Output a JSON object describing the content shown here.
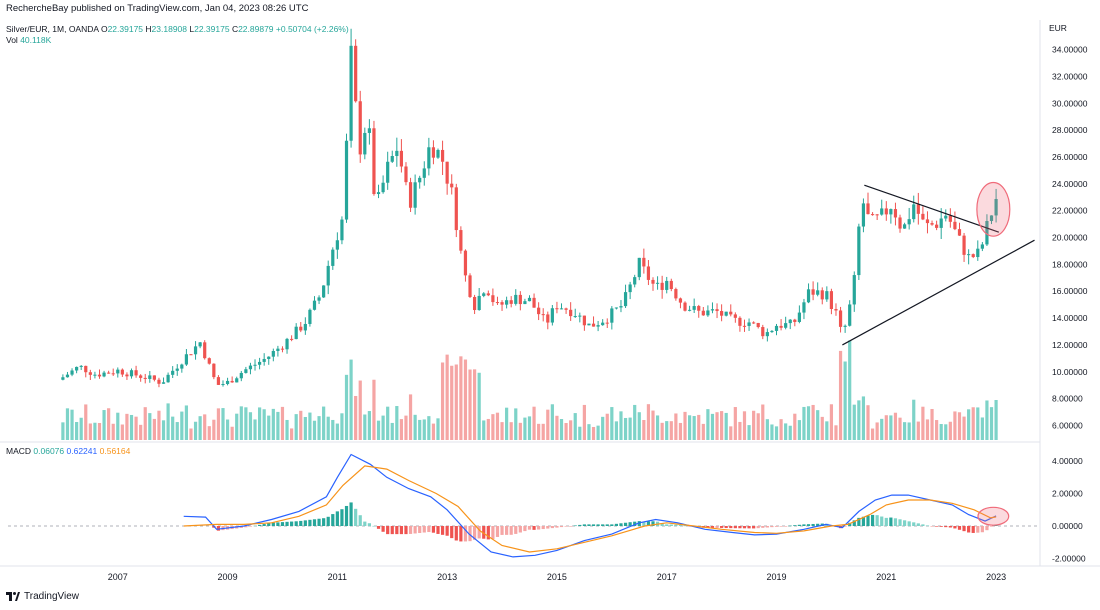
{
  "header": {
    "published": "RechercheBay published on TradingView.com, Jan 04, 2023 08:26 UTC",
    "symbol_line": {
      "symbol": "Silver/EUR, 1M, OANDA",
      "open_label": "O",
      "open": "22.39175",
      "high_label": "H",
      "high": "23.18908",
      "low_label": "L",
      "low": "22.39175",
      "close_label": "C",
      "close": "22.89879",
      "change": "+0.50704 (+2.26%)"
    },
    "volume_line": {
      "label": "Vol",
      "value": "40.118K"
    }
  },
  "macd_header": {
    "label": "MACD",
    "hist": "0.06076",
    "macd": "0.62241",
    "signal": "0.56164"
  },
  "footer": {
    "brand": "TradingView"
  },
  "colors": {
    "up": "#26a69a",
    "down": "#ef5350",
    "up_vol": "#7dd3c8",
    "down_vol": "#f5a5a4",
    "macd": "#2962ff",
    "signal": "#f7931a",
    "ellipse": "#f06b7a"
  },
  "chart_data": [
    {
      "type": "candlestick",
      "title": "Silver/EUR, 1M, OANDA",
      "currency": "EUR",
      "ylim": [
        4.4,
        36.2
      ],
      "y_ticks": [
        6,
        8,
        10,
        12,
        14,
        16,
        18,
        20,
        22,
        24,
        26,
        28,
        30,
        32,
        34
      ],
      "y_tick_labels": [
        "6.00000",
        "8.00000",
        "10.00000",
        "12.00000",
        "14.00000",
        "16.00000",
        "18.00000",
        "20.00000",
        "22.00000",
        "24.00000",
        "26.00000",
        "28.00000",
        "30.00000",
        "32.00000",
        "34.00000"
      ],
      "x_ticks": [
        2007,
        2009,
        2011,
        2013,
        2015,
        2017,
        2019,
        2021,
        2023
      ],
      "x_tick_labels": [
        "2007",
        "2009",
        "2011",
        "2013",
        "2015",
        "2017",
        "2019",
        "2021",
        "2023"
      ],
      "xlim": [
        2005.0,
        2023.8
      ],
      "monthly_close_anchors": [
        [
          2006.0,
          9.6
        ],
        [
          2006.3,
          10.4
        ],
        [
          2006.6,
          9.8
        ],
        [
          2007.0,
          10.1
        ],
        [
          2007.5,
          9.6
        ],
        [
          2007.8,
          9.2
        ],
        [
          2008.2,
          11.0
        ],
        [
          2008.5,
          12.2
        ],
        [
          2008.8,
          9.0
        ],
        [
          2009.0,
          9.2
        ],
        [
          2009.3,
          10.1
        ],
        [
          2009.7,
          11.0
        ],
        [
          2010.0,
          12.0
        ],
        [
          2010.4,
          13.6
        ],
        [
          2010.7,
          15.8
        ],
        [
          2010.9,
          19.0
        ],
        [
          2011.1,
          21.5
        ],
        [
          2011.25,
          33.5
        ],
        [
          2011.4,
          26.5
        ],
        [
          2011.55,
          29.0
        ],
        [
          2011.7,
          22.0
        ],
        [
          2011.9,
          25.0
        ],
        [
          2012.1,
          26.8
        ],
        [
          2012.3,
          22.5
        ],
        [
          2012.5,
          24.5
        ],
        [
          2012.7,
          27.0
        ],
        [
          2012.9,
          26.0
        ],
        [
          2013.1,
          23.0
        ],
        [
          2013.3,
          17.5
        ],
        [
          2013.5,
          15.0
        ],
        [
          2013.7,
          16.5
        ],
        [
          2013.9,
          14.8
        ],
        [
          2014.2,
          15.5
        ],
        [
          2014.5,
          15.3
        ],
        [
          2014.8,
          13.6
        ],
        [
          2015.0,
          15.0
        ],
        [
          2015.3,
          14.5
        ],
        [
          2015.6,
          13.4
        ],
        [
          2015.9,
          14.0
        ],
        [
          2016.2,
          15.0
        ],
        [
          2016.5,
          18.0
        ],
        [
          2016.8,
          16.2
        ],
        [
          2017.0,
          16.8
        ],
        [
          2017.3,
          15.0
        ],
        [
          2017.6,
          14.4
        ],
        [
          2017.9,
          14.5
        ],
        [
          2018.2,
          13.8
        ],
        [
          2018.5,
          13.7
        ],
        [
          2018.8,
          12.8
        ],
        [
          2019.0,
          13.5
        ],
        [
          2019.3,
          13.5
        ],
        [
          2019.6,
          16.0
        ],
        [
          2019.9,
          15.8
        ],
        [
          2020.1,
          14.2
        ],
        [
          2020.2,
          12.5
        ],
        [
          2020.4,
          16.0
        ],
        [
          2020.55,
          23.0
        ],
        [
          2020.7,
          21.0
        ],
        [
          2020.9,
          21.5
        ],
        [
          2021.1,
          22.5
        ],
        [
          2021.3,
          20.5
        ],
        [
          2021.5,
          22.5
        ],
        [
          2021.7,
          20.8
        ],
        [
          2021.9,
          21.0
        ],
        [
          2022.1,
          21.8
        ],
        [
          2022.3,
          20.0
        ],
        [
          2022.5,
          18.5
        ],
        [
          2022.7,
          18.8
        ],
        [
          2022.85,
          21.0
        ],
        [
          2023.0,
          22.9
        ]
      ],
      "volume_ylim": [
        0,
        40
      ],
      "annotations": [
        {
          "type": "trendline",
          "name": "upper-descending-trendline",
          "from": [
            2020.6,
            23.9
          ],
          "to": [
            2023.05,
            20.4
          ]
        },
        {
          "type": "trendline",
          "name": "lower-ascending-trendline",
          "from": [
            2020.2,
            12.0
          ],
          "to": [
            2023.7,
            19.8
          ]
        },
        {
          "type": "ellipse",
          "name": "breakout-circle",
          "center": [
            2022.95,
            22.1
          ],
          "rx_years": 0.3,
          "ry_price": 2.0
        }
      ]
    },
    {
      "type": "line",
      "title": "MACD",
      "ylim": [
        -2.4,
        4.8
      ],
      "y_ticks": [
        -2,
        0,
        2,
        4
      ],
      "y_tick_labels": [
        "-2.00000",
        "0.00000",
        "2.00000",
        "4.00000"
      ],
      "series": [
        {
          "name": "MACD",
          "color": "#2962ff",
          "points": [
            [
              2008.2,
              0.6
            ],
            [
              2008.6,
              0.55
            ],
            [
              2008.8,
              -0.2
            ],
            [
              2009.3,
              0.0
            ],
            [
              2009.8,
              0.4
            ],
            [
              2010.3,
              0.9
            ],
            [
              2010.8,
              1.8
            ],
            [
              2011.0,
              3.0
            ],
            [
              2011.25,
              4.4
            ],
            [
              2011.6,
              3.8
            ],
            [
              2011.9,
              3.0
            ],
            [
              2012.3,
              2.3
            ],
            [
              2012.7,
              1.8
            ],
            [
              2013.0,
              1.0
            ],
            [
              2013.4,
              -0.5
            ],
            [
              2013.8,
              -1.6
            ],
            [
              2014.2,
              -1.9
            ],
            [
              2014.6,
              -1.8
            ],
            [
              2015.0,
              -1.5
            ],
            [
              2015.5,
              -0.9
            ],
            [
              2016.0,
              -0.5
            ],
            [
              2016.5,
              0.2
            ],
            [
              2016.8,
              0.4
            ],
            [
              2017.2,
              0.2
            ],
            [
              2017.7,
              -0.2
            ],
            [
              2018.2,
              -0.4
            ],
            [
              2018.6,
              -0.55
            ],
            [
              2019.0,
              -0.5
            ],
            [
              2019.5,
              -0.2
            ],
            [
              2019.9,
              0.1
            ],
            [
              2020.2,
              -0.1
            ],
            [
              2020.5,
              0.9
            ],
            [
              2020.8,
              1.6
            ],
            [
              2021.1,
              1.9
            ],
            [
              2021.4,
              1.9
            ],
            [
              2021.8,
              1.6
            ],
            [
              2022.2,
              1.3
            ],
            [
              2022.5,
              0.7
            ],
            [
              2022.8,
              0.3
            ],
            [
              2023.0,
              0.62
            ]
          ]
        },
        {
          "name": "Signal",
          "color": "#f7931a",
          "points": [
            [
              2008.2,
              0.0
            ],
            [
              2008.8,
              0.1
            ],
            [
              2009.3,
              0.1
            ],
            [
              2009.8,
              0.2
            ],
            [
              2010.3,
              0.6
            ],
            [
              2010.8,
              1.3
            ],
            [
              2011.1,
              2.5
            ],
            [
              2011.5,
              3.7
            ],
            [
              2011.9,
              3.5
            ],
            [
              2012.3,
              2.8
            ],
            [
              2012.8,
              2.0
            ],
            [
              2013.2,
              1.2
            ],
            [
              2013.6,
              -0.3
            ],
            [
              2014.0,
              -1.2
            ],
            [
              2014.5,
              -1.6
            ],
            [
              2015.0,
              -1.4
            ],
            [
              2015.5,
              -1.0
            ],
            [
              2016.0,
              -0.6
            ],
            [
              2016.6,
              0.0
            ],
            [
              2017.0,
              0.2
            ],
            [
              2017.5,
              0.0
            ],
            [
              2018.0,
              -0.2
            ],
            [
              2018.6,
              -0.4
            ],
            [
              2019.0,
              -0.45
            ],
            [
              2019.5,
              -0.3
            ],
            [
              2020.0,
              0.0
            ],
            [
              2020.3,
              0.1
            ],
            [
              2020.7,
              0.7
            ],
            [
              2021.0,
              1.3
            ],
            [
              2021.4,
              1.6
            ],
            [
              2021.8,
              1.6
            ],
            [
              2022.2,
              1.4
            ],
            [
              2022.6,
              1.0
            ],
            [
              2022.9,
              0.5
            ],
            [
              2023.0,
              0.56
            ]
          ]
        }
      ],
      "histogram": {
        "name": "Histogram",
        "baseline": 0
      },
      "annotations": [
        {
          "type": "ellipse",
          "name": "macd-crossover-circle",
          "center": [
            2022.95,
            0.6
          ],
          "rx_years": 0.28,
          "ry_value": 0.55
        }
      ]
    }
  ]
}
